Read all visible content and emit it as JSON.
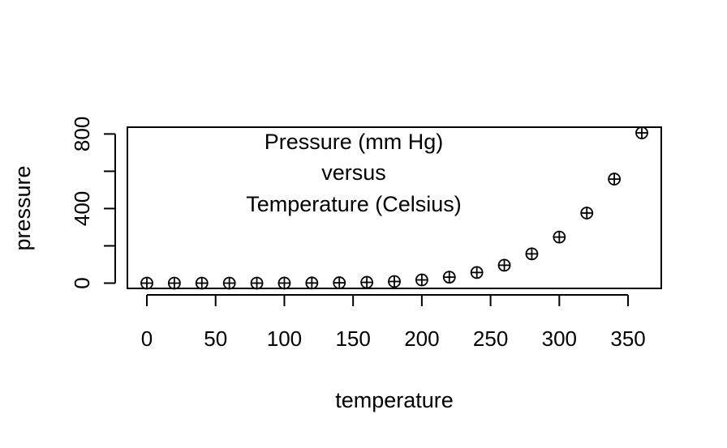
{
  "chart_data": {
    "type": "scatter",
    "title": "",
    "xlabel": "temperature",
    "ylabel": "pressure",
    "annotation": [
      "Pressure (mm Hg)",
      "versus",
      "Temperature (Celsius)"
    ],
    "x_ticks": [
      0,
      50,
      100,
      150,
      200,
      250,
      300,
      350
    ],
    "x_tick_labels": [
      "0",
      "50",
      "100",
      "150",
      "200",
      "250",
      "300",
      "350"
    ],
    "y_ticks": [
      0,
      200,
      400,
      600,
      800
    ],
    "y_tick_labels": [
      "0",
      "",
      "400",
      "",
      "800"
    ],
    "xlim": [
      0,
      360
    ],
    "ylim": [
      0,
      806
    ],
    "marker": "circle-plus",
    "grid": false,
    "legend": "none",
    "series": [
      {
        "x": [
          0,
          20,
          40,
          60,
          80,
          100,
          120,
          140,
          160,
          180,
          200,
          220,
          240,
          260,
          280,
          300,
          320,
          340,
          360
        ],
        "y": [
          0.0002,
          0.0012,
          0.006,
          0.03,
          0.09,
          0.27,
          0.75,
          1.85,
          4.2,
          8.8,
          17.3,
          32.1,
          57,
          96,
          157,
          247,
          376,
          558,
          806
        ]
      }
    ]
  }
}
